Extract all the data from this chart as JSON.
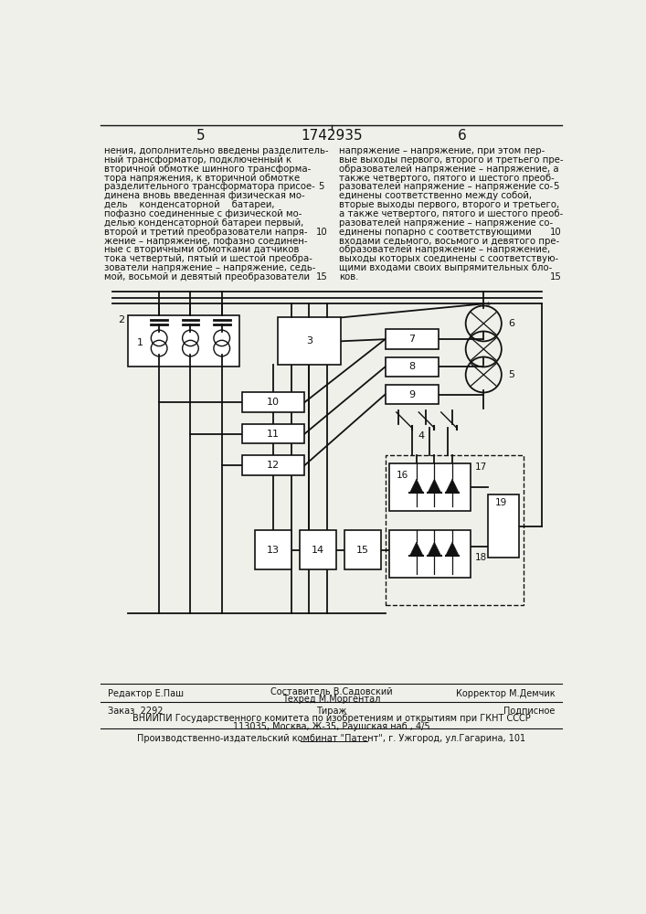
{
  "page_number_left": "5",
  "patent_number": "1742935",
  "page_number_right": "6",
  "left_col_lines": [
    "нения, дополнительно введены разделитель-",
    "ный трансформатор, подключенный к",
    "вторичной обмотке шинного трансформа-",
    "тора напряжения, к вторичной обмотке",
    "разделительного трансформатора присое-",
    "динена вновь введенная физическая мо-",
    "дель    конденсаторной    батареи,",
    "пофазно соединенные с физической мо-",
    "делью конденсаторной батареи первый,",
    "второй и третий преобразователи напря-",
    "жение – напряжение, пофазно соединен-",
    "ные с вторичными обмотками датчиков",
    "тока четвертый, пятый и шестой преобра-",
    "зователи напряжение – напряжение, седь-",
    "мой, восьмой и девятый преобразователи"
  ],
  "left_col_linenum": {
    "4": "5",
    "9": "10",
    "14": "15"
  },
  "right_col_lines": [
    "напряжение – напряжение, при этом пер-",
    "вые выходы первого, второго и третьего пре-",
    "образователей напряжение – напряжение, а",
    "также четвертого, пятого и шестого преоб-",
    "разователей напряжение – напряжение со-",
    "единены соответственно между собой,",
    "вторые выходы первого, второго и третьего,",
    "а также четвертого, пятого и шестого преоб-",
    "разователей напряжение – напряжение со-",
    "единены попарно с соответствующими",
    "входами седьмого, восьмого и девятого пре-",
    "образователей напряжение – напряжение,",
    "выходы которых соединены с соответствую-",
    "щими входами своих выпрямительных бло-",
    "ков."
  ],
  "right_col_linenum": {
    "4": "5",
    "9": "10",
    "14": "15"
  },
  "footer_editor": "Редактор Е.Паш",
  "footer_compiler": "Составитель В.Садовский",
  "footer_techred": "Техред М.Моргентал",
  "footer_corrector": "Корректор М.Демчик",
  "footer_order": "Заказ  2292",
  "footer_tirazh": "Тираж",
  "footer_podpisnoe": "Подписное",
  "footer_vniiipi": "ВНИИПИ Государственного комитета по изобретениям и открытиям при ГКНТ СССР",
  "footer_address": "113035, Москва, Ж-35, Раушская наб., 4/5",
  "footer_publisher": "Производственно-издательский комбинат \"Патент\", г. Ужгород, ул.Гагарина, 101",
  "bg_color": "#f0f0eb",
  "text_color": "#111111"
}
